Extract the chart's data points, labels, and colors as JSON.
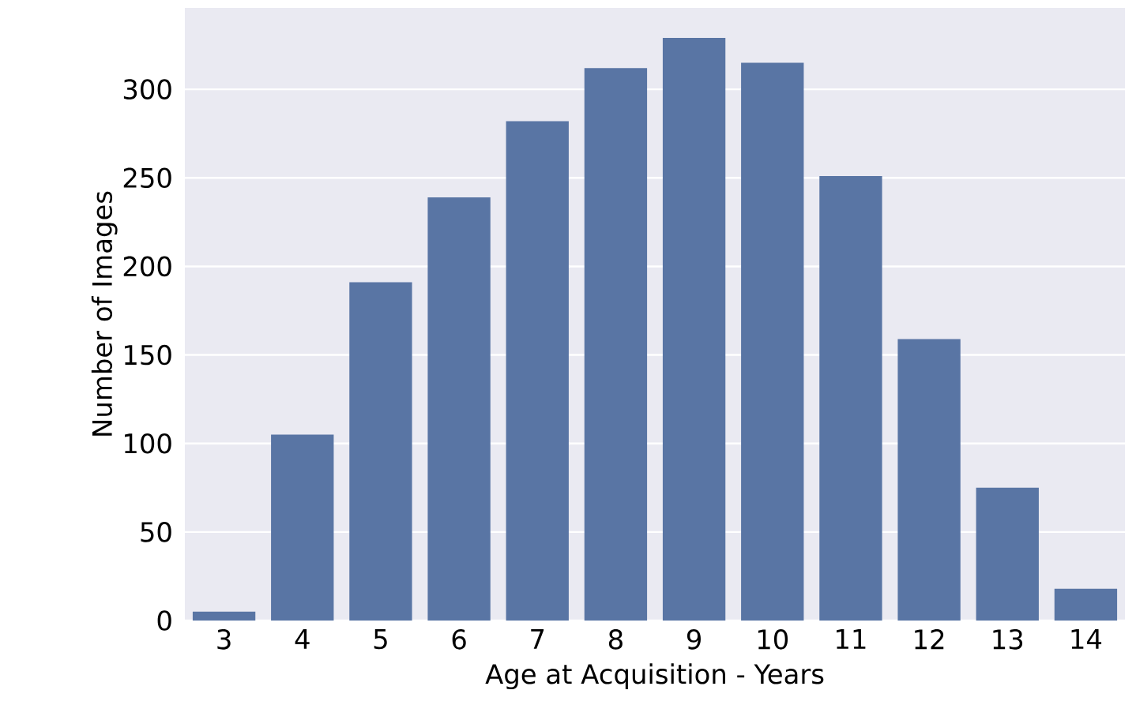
{
  "chart_data": {
    "type": "bar",
    "xlabel": "Age at Acquisition - Years",
    "ylabel": "Number of Images",
    "categories": [
      "3",
      "4",
      "5",
      "6",
      "7",
      "8",
      "9",
      "10",
      "11",
      "12",
      "13",
      "14"
    ],
    "values": [
      5,
      105,
      191,
      239,
      282,
      312,
      329,
      315,
      251,
      159,
      75,
      18
    ],
    "color": "#5975a4",
    "ylim": [
      0,
      346
    ],
    "yticks": [
      0,
      50,
      100,
      150,
      200,
      250,
      300
    ],
    "grid": "y"
  }
}
